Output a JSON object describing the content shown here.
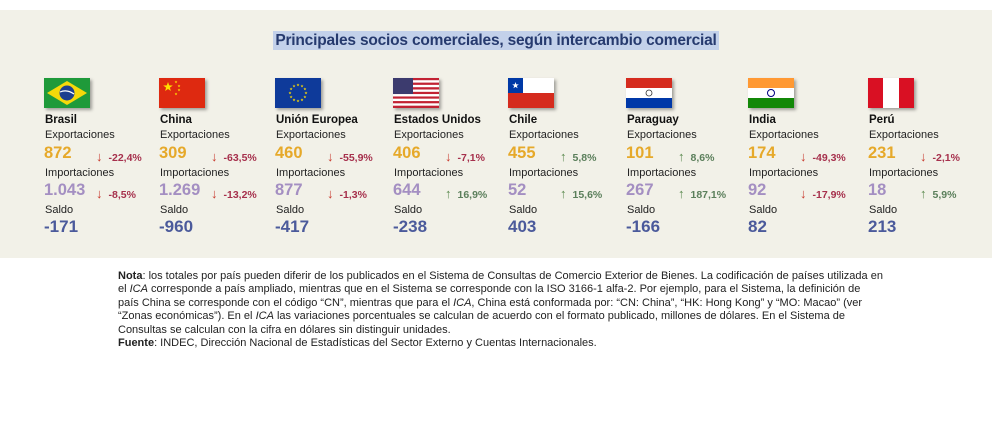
{
  "title": "Principales socios comerciales, según intercambio comercial",
  "labels": {
    "exports": "Exportaciones",
    "imports": "Importaciones",
    "balance": "Saldo"
  },
  "countries": [
    {
      "name": "Brasil",
      "exports": "872",
      "exports_change": "-22,4%",
      "imports": "1.043",
      "imports_change": "-8,5%",
      "balance": "-171"
    },
    {
      "name": "China",
      "exports": "309",
      "exports_change": "-63,5%",
      "imports": "1.269",
      "imports_change": "-13,2%",
      "balance": "-960"
    },
    {
      "name": "Unión Europea",
      "exports": "460",
      "exports_change": "-55,9%",
      "imports": "877",
      "imports_change": "-1,3%",
      "balance": "-417"
    },
    {
      "name": "Estados Unidos",
      "exports": "406",
      "exports_change": "-7,1%",
      "imports": "644",
      "imports_change": "16,9%",
      "balance": "-238"
    },
    {
      "name": "Chile",
      "exports": "455",
      "exports_change": "5,8%",
      "imports": "52",
      "imports_change": "15,6%",
      "balance": "403"
    },
    {
      "name": "Paraguay",
      "exports": "101",
      "exports_change": "8,6%",
      "imports": "267",
      "imports_change": "187,1%",
      "balance": "-166"
    },
    {
      "name": "India",
      "exports": "174",
      "exports_change": "-49,3%",
      "imports": "92",
      "imports_change": "-17,9%",
      "balance": "82"
    },
    {
      "name": "Perú",
      "exports": "231",
      "exports_change": "-2,1%",
      "imports": "18",
      "imports_change": "5,9%",
      "balance": "213"
    }
  ],
  "note": {
    "label": "Nota",
    "parts": [
      ": los totales por país pueden diferir de los publicados en el Sistema de Consultas de Comercio Exterior de Bienes. La codificación de países utilizada en el ",
      "ICA",
      " corresponde a país ampliado, mientras que en el Sistema se corresponde con la ISO 3166-1 alfa-2. Por ejemplo, para el Sistema, la definición de país China se corresponde con el código “CN”, mientras que para el ",
      "ICA",
      ", China está conformada por: “CN: China”, “HK: Hong Kong” y “MO: Macao” (ver “Zonas económicas”). En el ",
      "ICA",
      " las variaciones porcentuales se calculan de acuerdo con el formato publicado, millones de dólares. En el Sistema de Consultas se calculan con la cifra en dólares sin distinguir unidades."
    ]
  },
  "source": {
    "label": "Fuente",
    "text": ": INDEC, Dirección Nacional de Estadísticas del Sector Externo y Cuentas Internacionales."
  }
}
